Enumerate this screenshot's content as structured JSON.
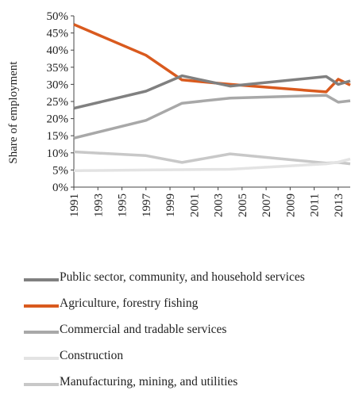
{
  "chart_data": {
    "type": "line",
    "ylabel": "Share of employment",
    "xlabel": "",
    "title": "",
    "ylim": [
      0,
      50
    ],
    "xlim": [
      1991,
      2014
    ],
    "y_ticks": [
      "0%",
      "5%",
      "10%",
      "15%",
      "20%",
      "25%",
      "30%",
      "35%",
      "40%",
      "45%",
      "50%"
    ],
    "x_ticks": [
      "1991",
      "1993",
      "1995",
      "1997",
      "1999",
      "2001",
      "2003",
      "2005",
      "2007",
      "2009",
      "2011",
      "2013"
    ],
    "grid": false,
    "legend_position": "bottom",
    "series": [
      {
        "name": "Public sector, community, and household services",
        "color": "#808080",
        "points": [
          [
            1991,
            23.0
          ],
          [
            1997,
            28.0
          ],
          [
            2000,
            32.5
          ],
          [
            2004,
            29.5
          ],
          [
            2012,
            32.3
          ],
          [
            2013,
            30.0
          ],
          [
            2014,
            31.0
          ]
        ]
      },
      {
        "name": "Agriculture, forestry fishing",
        "color": "#d95a1e",
        "points": [
          [
            1991,
            47.5
          ],
          [
            1997,
            38.5
          ],
          [
            2000,
            31.3
          ],
          [
            2004,
            30.0
          ],
          [
            2012,
            27.8
          ],
          [
            2013,
            31.5
          ],
          [
            2014,
            29.8
          ]
        ]
      },
      {
        "name": "Commercial and tradable services",
        "color": "#a8a8a8",
        "points": [
          [
            1991,
            14.3
          ],
          [
            1997,
            19.5
          ],
          [
            2000,
            24.5
          ],
          [
            2004,
            26.0
          ],
          [
            2012,
            26.8
          ],
          [
            2013,
            24.8
          ],
          [
            2014,
            25.2
          ]
        ]
      },
      {
        "name": "Construction",
        "color": "#e3e3e3",
        "points": [
          [
            1991,
            4.8
          ],
          [
            1997,
            5.0
          ],
          [
            2000,
            5.1
          ],
          [
            2004,
            5.2
          ],
          [
            2012,
            6.8
          ],
          [
            2013,
            7.3
          ],
          [
            2014,
            8.2
          ]
        ]
      },
      {
        "name": "Manufacturing, mining, and utilities",
        "color": "#c8c8c8",
        "points": [
          [
            1991,
            10.3
          ],
          [
            1997,
            9.2
          ],
          [
            2000,
            7.2
          ],
          [
            2004,
            9.7
          ],
          [
            2012,
            7.0
          ],
          [
            2013,
            7.2
          ],
          [
            2014,
            6.8
          ]
        ]
      }
    ]
  }
}
